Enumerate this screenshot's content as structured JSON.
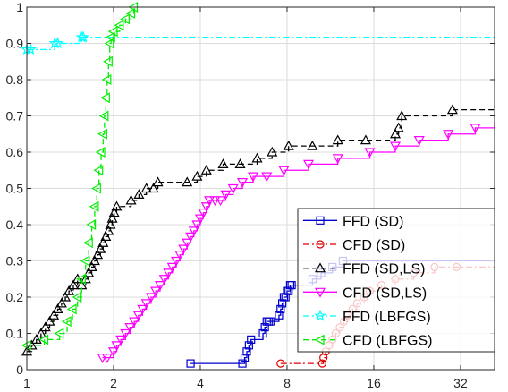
{
  "chart_data": {
    "type": "line",
    "x_scale": "log2",
    "xlim": [
      1,
      42
    ],
    "ylim": [
      0,
      1
    ],
    "x_ticks": [
      1,
      2,
      4,
      8,
      16,
      32
    ],
    "x_tick_labels": [
      "1",
      "2",
      "4",
      "8",
      "16",
      "32"
    ],
    "y_ticks": [
      0,
      0.1,
      0.2,
      0.3,
      0.4,
      0.5,
      0.6,
      0.7,
      0.8,
      0.9,
      1
    ],
    "y_tick_labels": [
      "0",
      "0.1",
      "0.2",
      "0.3",
      "0.4",
      "0.5",
      "0.6",
      "0.7",
      "0.8",
      "0.9",
      "1"
    ],
    "grid": true,
    "legend_position": "bottom-right",
    "series": [
      {
        "name": "FFD (SD)",
        "color": "#0000cc",
        "line": "solid",
        "marker": "square",
        "x": [
          3.7,
          5.6,
          5.7,
          5.8,
          5.9,
          6.0,
          6.6,
          6.7,
          6.8,
          6.9,
          7.0,
          7.5,
          7.6,
          7.7,
          7.8,
          7.9,
          8.0,
          8.1,
          8.2,
          8.3,
          9.8,
          10.5,
          11.5,
          12.5,
          42
        ],
        "y": [
          0.017,
          0.017,
          0.033,
          0.05,
          0.067,
          0.083,
          0.1,
          0.117,
          0.133,
          0.133,
          0.133,
          0.15,
          0.167,
          0.183,
          0.2,
          0.2,
          0.217,
          0.217,
          0.233,
          0.233,
          0.25,
          0.267,
          0.283,
          0.3,
          0.3
        ]
      },
      {
        "name": "CFD (SD)",
        "color": "#dd0000",
        "line": "dashdot",
        "marker": "circle",
        "x": [
          7.6,
          10.6,
          10.7,
          10.9,
          11.2,
          11.5,
          11.8,
          12.2,
          12.6,
          13.0,
          13.5,
          14.0,
          14.8,
          15.5,
          17.0,
          19.0,
          22.0,
          26.0,
          31.0,
          42
        ],
        "y": [
          0.017,
          0.017,
          0.033,
          0.05,
          0.067,
          0.083,
          0.1,
          0.117,
          0.133,
          0.15,
          0.167,
          0.183,
          0.2,
          0.217,
          0.233,
          0.25,
          0.267,
          0.283,
          0.283,
          0.283
        ]
      },
      {
        "name": "FFD (SD,LS)",
        "color": "#000000",
        "line": "dashed",
        "marker": "triangle-up",
        "x": [
          1.0,
          1.04,
          1.08,
          1.12,
          1.16,
          1.2,
          1.24,
          1.28,
          1.32,
          1.36,
          1.4,
          1.45,
          1.5,
          1.55,
          1.6,
          1.64,
          1.68,
          1.72,
          1.76,
          1.8,
          1.84,
          1.88,
          1.92,
          1.95,
          1.98,
          2.01,
          2.05,
          2.3,
          2.45,
          2.6,
          2.75,
          2.85,
          3.6,
          3.9,
          4.2,
          4.8,
          5.5,
          6.3,
          7.1,
          8.1,
          9.8,
          12.0,
          15.0,
          19.0,
          19.5,
          20.0,
          30.0,
          42
        ],
        "y": [
          0.05,
          0.067,
          0.083,
          0.1,
          0.117,
          0.133,
          0.15,
          0.167,
          0.183,
          0.2,
          0.217,
          0.233,
          0.25,
          0.233,
          0.25,
          0.267,
          0.283,
          0.3,
          0.317,
          0.333,
          0.35,
          0.367,
          0.383,
          0.4,
          0.417,
          0.433,
          0.45,
          0.467,
          0.483,
          0.5,
          0.5,
          0.517,
          0.517,
          0.533,
          0.55,
          0.567,
          0.567,
          0.583,
          0.6,
          0.617,
          0.617,
          0.633,
          0.633,
          0.65,
          0.667,
          0.7,
          0.717,
          0.717
        ]
      },
      {
        "name": "CFD (SD,LS)",
        "color": "#ff00ff",
        "line": "solid",
        "marker": "triangle-down",
        "x": [
          1.83,
          1.9,
          2.0,
          2.05,
          2.12,
          2.2,
          2.28,
          2.36,
          2.44,
          2.52,
          2.6,
          2.7,
          2.8,
          2.9,
          3.0,
          3.1,
          3.2,
          3.3,
          3.4,
          3.5,
          3.6,
          3.7,
          3.8,
          3.9,
          4.0,
          4.1,
          4.2,
          4.3,
          4.5,
          4.7,
          4.9,
          5.2,
          5.6,
          6.1,
          6.8,
          7.8,
          9.5,
          12.0,
          15.5,
          19.0,
          23.0,
          29.0,
          36.0,
          42
        ],
        "y": [
          0.033,
          0.033,
          0.05,
          0.067,
          0.083,
          0.1,
          0.117,
          0.133,
          0.15,
          0.167,
          0.183,
          0.2,
          0.217,
          0.233,
          0.25,
          0.267,
          0.283,
          0.3,
          0.317,
          0.333,
          0.35,
          0.367,
          0.383,
          0.4,
          0.417,
          0.433,
          0.45,
          0.467,
          0.467,
          0.467,
          0.483,
          0.5,
          0.517,
          0.533,
          0.533,
          0.55,
          0.567,
          0.583,
          0.6,
          0.617,
          0.633,
          0.65,
          0.667,
          0.683
        ]
      },
      {
        "name": "FFD (LBFGS)",
        "color": "#00ffff",
        "line": "dashdot",
        "marker": "star",
        "x": [
          1.0,
          1.03,
          1.25,
          1.28,
          1.55,
          1.57,
          42
        ],
        "y": [
          0.883,
          0.883,
          0.9,
          0.9,
          0.917,
          0.917,
          0.917
        ]
      },
      {
        "name": "CFD (LBFGS)",
        "color": "#00ee00",
        "line": "dashed",
        "marker": "triangle-left",
        "x": [
          1.0,
          1.15,
          1.3,
          1.38,
          1.44,
          1.5,
          1.55,
          1.6,
          1.64,
          1.68,
          1.72,
          1.75,
          1.78,
          1.81,
          1.84,
          1.86,
          1.88,
          1.9,
          1.92,
          1.94,
          1.96,
          2.0,
          2.1,
          2.2,
          2.3,
          2.35
        ],
        "y": [
          0.067,
          0.083,
          0.1,
          0.133,
          0.167,
          0.2,
          0.25,
          0.3,
          0.35,
          0.4,
          0.45,
          0.5,
          0.55,
          0.6,
          0.65,
          0.7,
          0.75,
          0.8,
          0.85,
          0.9,
          0.917,
          0.933,
          0.95,
          0.967,
          0.983,
          1.0
        ]
      }
    ]
  }
}
